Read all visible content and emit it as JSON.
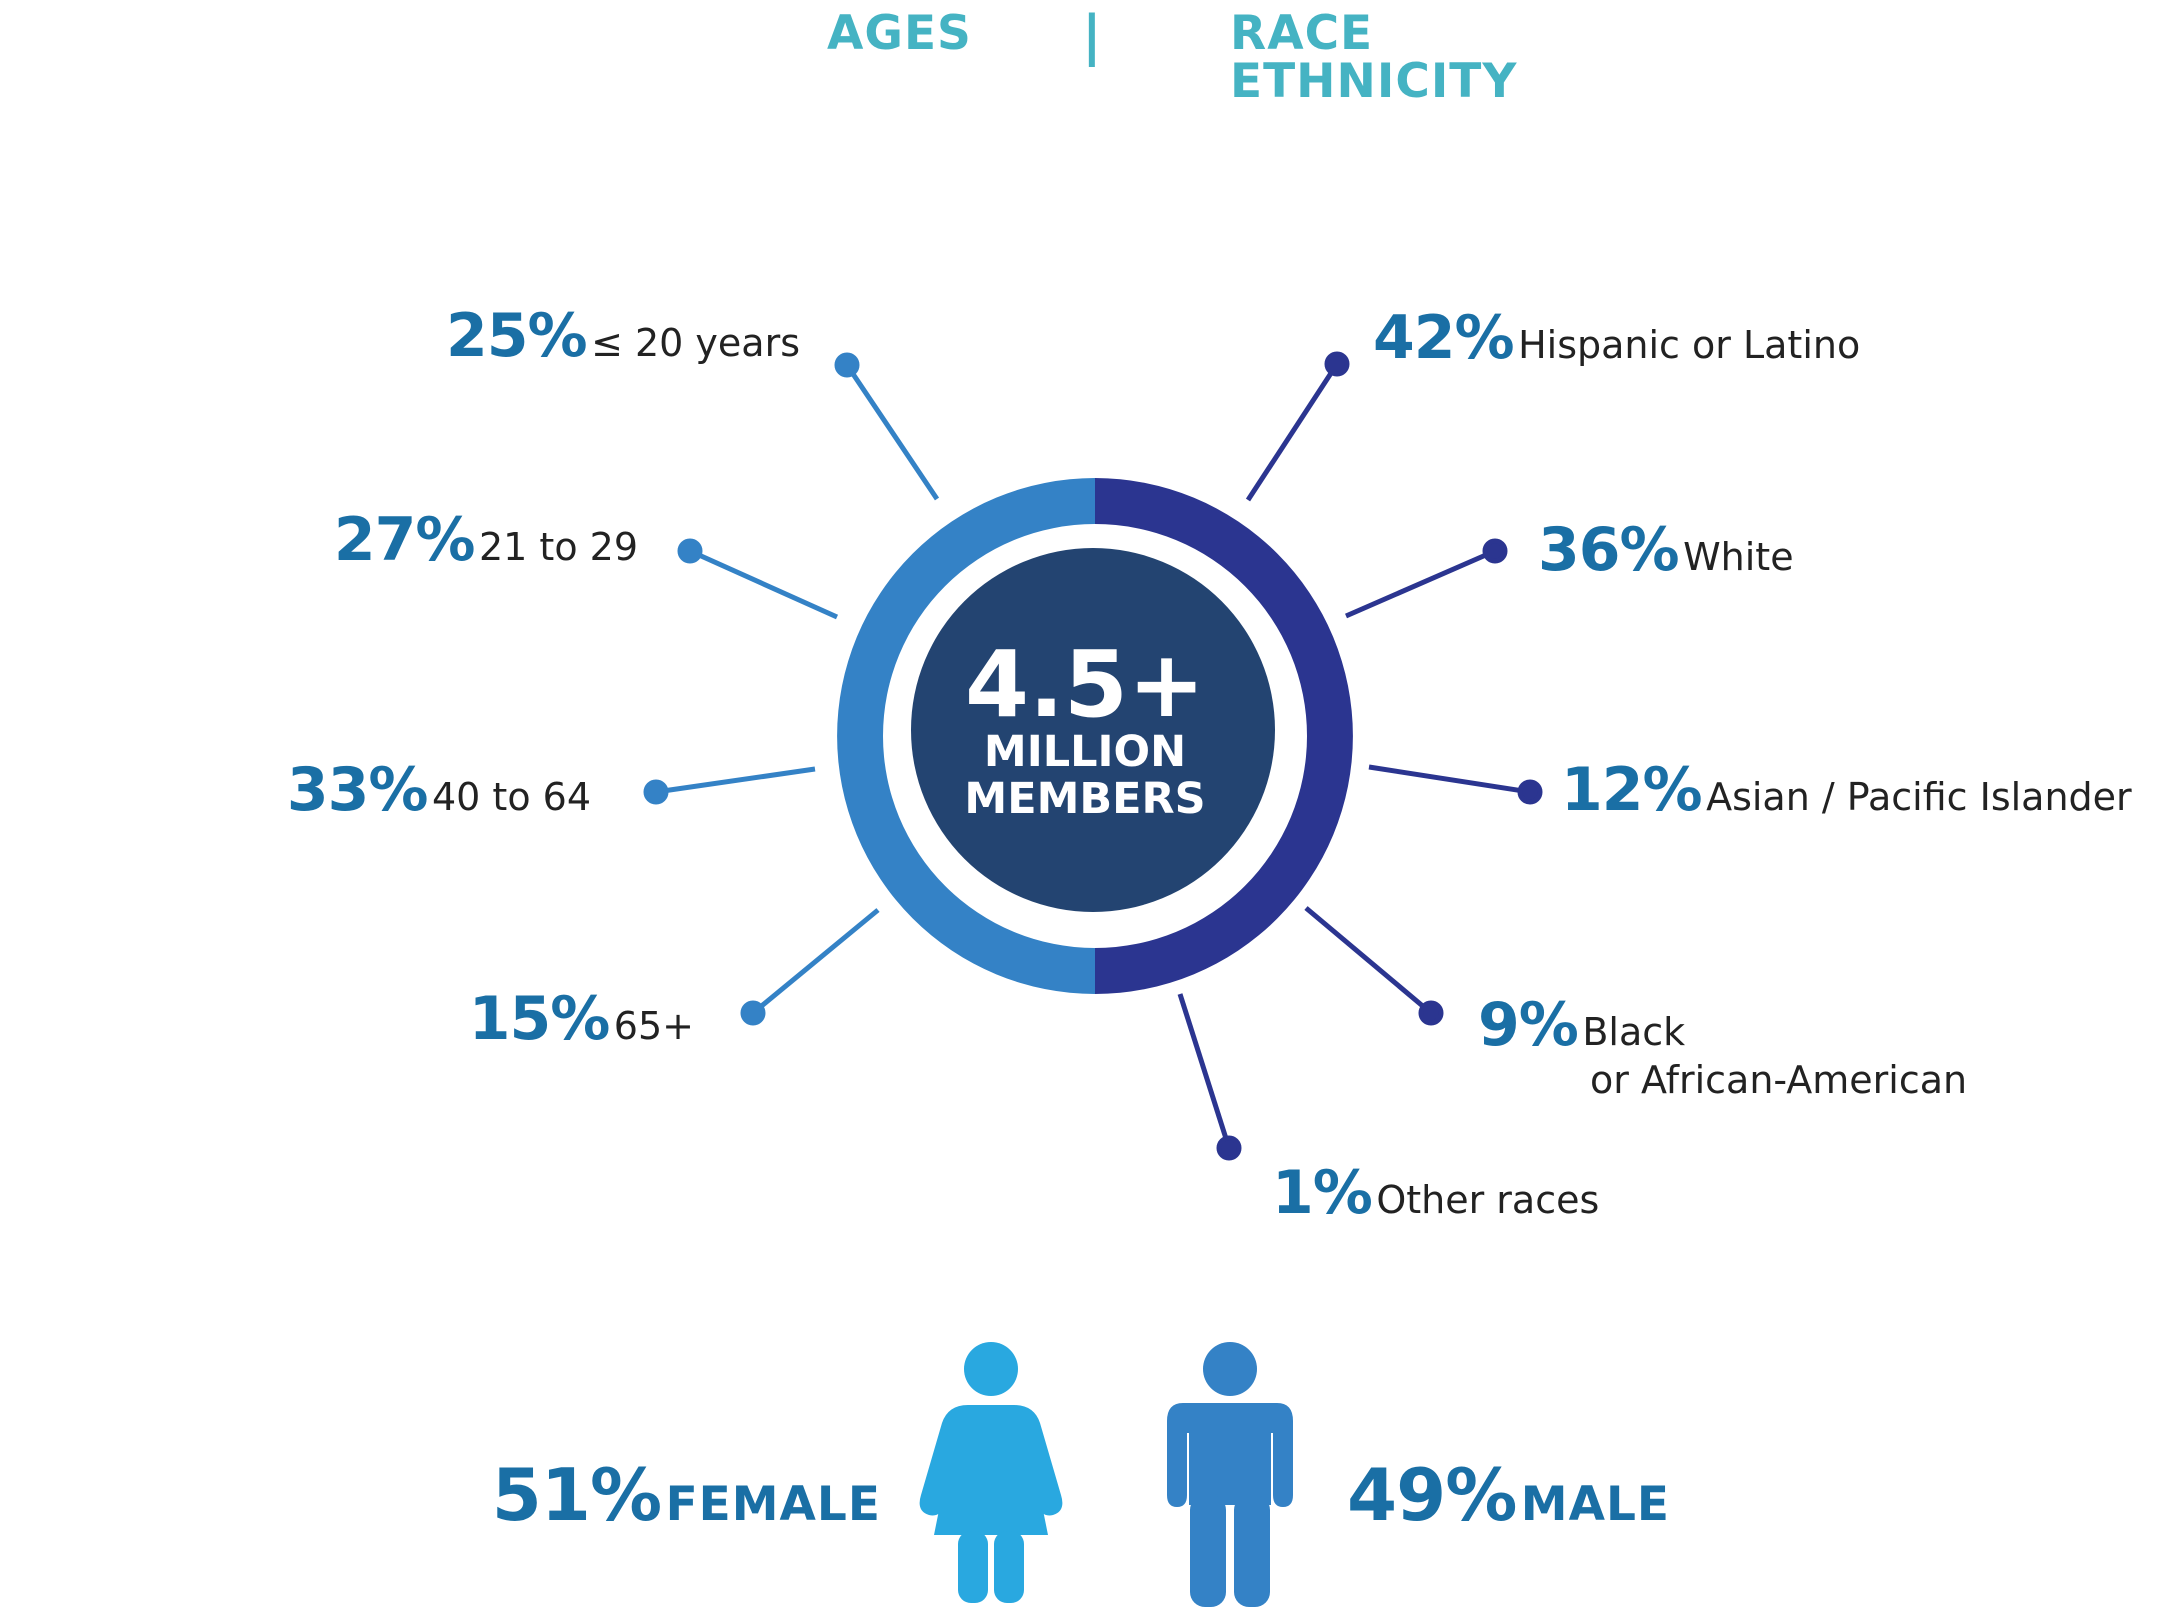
{
  "header": {
    "ages_label": "AGES",
    "divider": "|",
    "race_line1": "RACE",
    "race_line2": "ETHNICITY"
  },
  "center": {
    "number": "4.5+",
    "line1": "MILLION",
    "line2": "MEMBERS"
  },
  "colors": {
    "accent_teal": "#45b3c3",
    "ages_blue": "#3482c6",
    "race_navy": "#2b3590",
    "center_fill": "#234471",
    "percent_text": "#1a6fa5",
    "female": "#29a8e0",
    "male": "#3482c6"
  },
  "ages": [
    {
      "percent": "25%",
      "label": "≤ 20 years"
    },
    {
      "percent": "27%",
      "label": "21 to 29"
    },
    {
      "percent": "33%",
      "label": "40 to 64"
    },
    {
      "percent": "15%",
      "label": "65+"
    }
  ],
  "race": [
    {
      "percent": "42%",
      "label": "Hispanic or Latino"
    },
    {
      "percent": "36%",
      "label": "White"
    },
    {
      "percent": "12%",
      "label": "Asian / Pacific Islander"
    },
    {
      "percent": "9%",
      "label": "Black",
      "label2": "or African-American"
    },
    {
      "percent": "1%",
      "label": "Other races"
    }
  ],
  "gender": {
    "female": {
      "percent": "51%",
      "label": "FEMALE",
      "icon": "female-person-icon"
    },
    "male": {
      "percent": "49%",
      "label": "MALE",
      "icon": "male-person-icon"
    }
  }
}
